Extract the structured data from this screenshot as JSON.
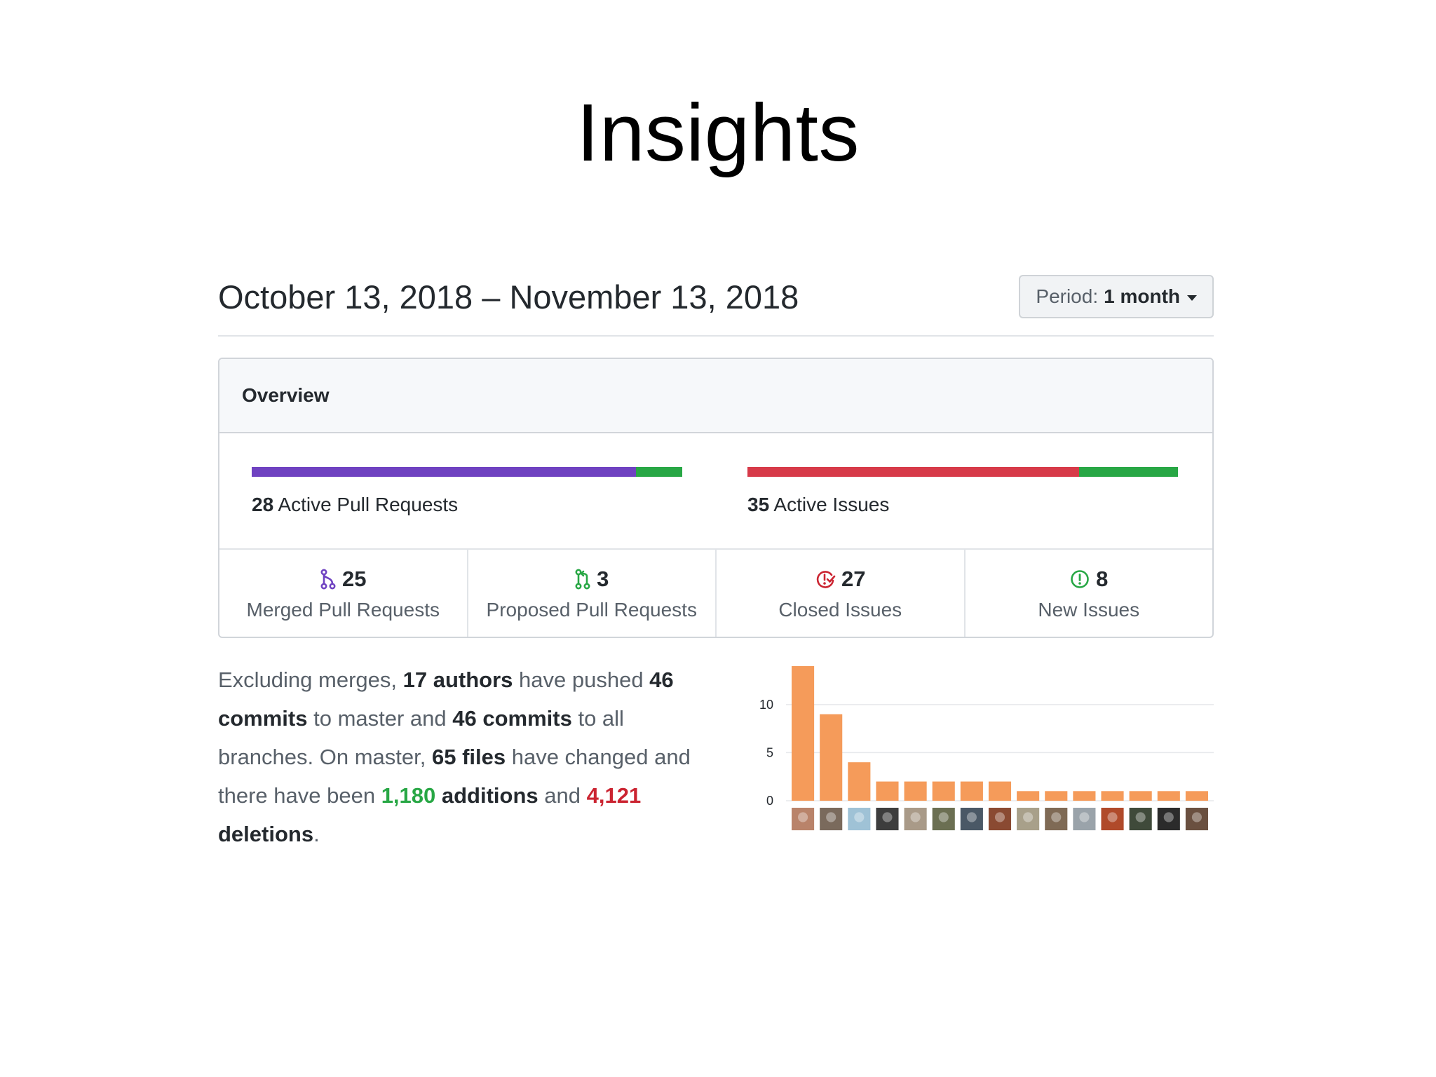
{
  "slide": {
    "title": "Insights"
  },
  "header": {
    "date_range": "October 13, 2018 – November 13, 2018",
    "period_label": "Period:",
    "period_value": "1 month"
  },
  "overview": {
    "title": "Overview",
    "pull_requests": {
      "count": "28",
      "label": "Active Pull Requests",
      "bar": {
        "merged_fraction": 0.893,
        "proposed_fraction": 0.107,
        "merged_color": "#6f42c1",
        "proposed_color": "#28a745"
      }
    },
    "issues": {
      "count": "35",
      "label": "Active Issues",
      "bar": {
        "closed_fraction": 0.771,
        "new_fraction": 0.229,
        "closed_color": "#d73a49",
        "new_color": "#28a745"
      }
    },
    "stats": [
      {
        "icon": "git-merge-icon",
        "color": "#6f42c1",
        "value": "25",
        "label": "Merged Pull Requests"
      },
      {
        "icon": "git-pull-request-icon",
        "color": "#28a745",
        "value": "3",
        "label": "Proposed Pull Requests"
      },
      {
        "icon": "issue-closed-icon",
        "color": "#cb2431",
        "value": "27",
        "label": "Closed Issues"
      },
      {
        "icon": "issue-opened-icon",
        "color": "#28a745",
        "value": "8",
        "label": "New Issues"
      }
    ]
  },
  "summary": {
    "t1": "Excluding merges, ",
    "authors": "17 authors",
    "t2": " have pushed ",
    "commits_master": "46 commits",
    "t3": " to master and ",
    "commits_all": "46 commits",
    "t4": " to all branches. On master, ",
    "files": "65 files",
    "t5": " have changed and there have been ",
    "additions_num": "1,180",
    "additions_word": " additions",
    "t6": " and ",
    "deletions_num": "4,121",
    "deletions_word": " deletions",
    "t7": "."
  },
  "chart_data": {
    "type": "bar",
    "categories": [
      "author-1",
      "author-2",
      "author-3",
      "author-4",
      "author-5",
      "author-6",
      "author-7",
      "author-8",
      "author-9",
      "author-10",
      "author-11",
      "author-12",
      "author-13",
      "author-14",
      "author-15"
    ],
    "values": [
      14,
      9,
      4,
      2,
      2,
      2,
      2,
      2,
      1,
      1,
      1,
      1,
      1,
      1,
      1
    ],
    "yticks": [
      "0",
      "5",
      "10"
    ],
    "ylim": [
      0,
      14
    ],
    "bar_color": "#f59b5a",
    "grid": true,
    "xlabel": "",
    "ylabel": ""
  }
}
